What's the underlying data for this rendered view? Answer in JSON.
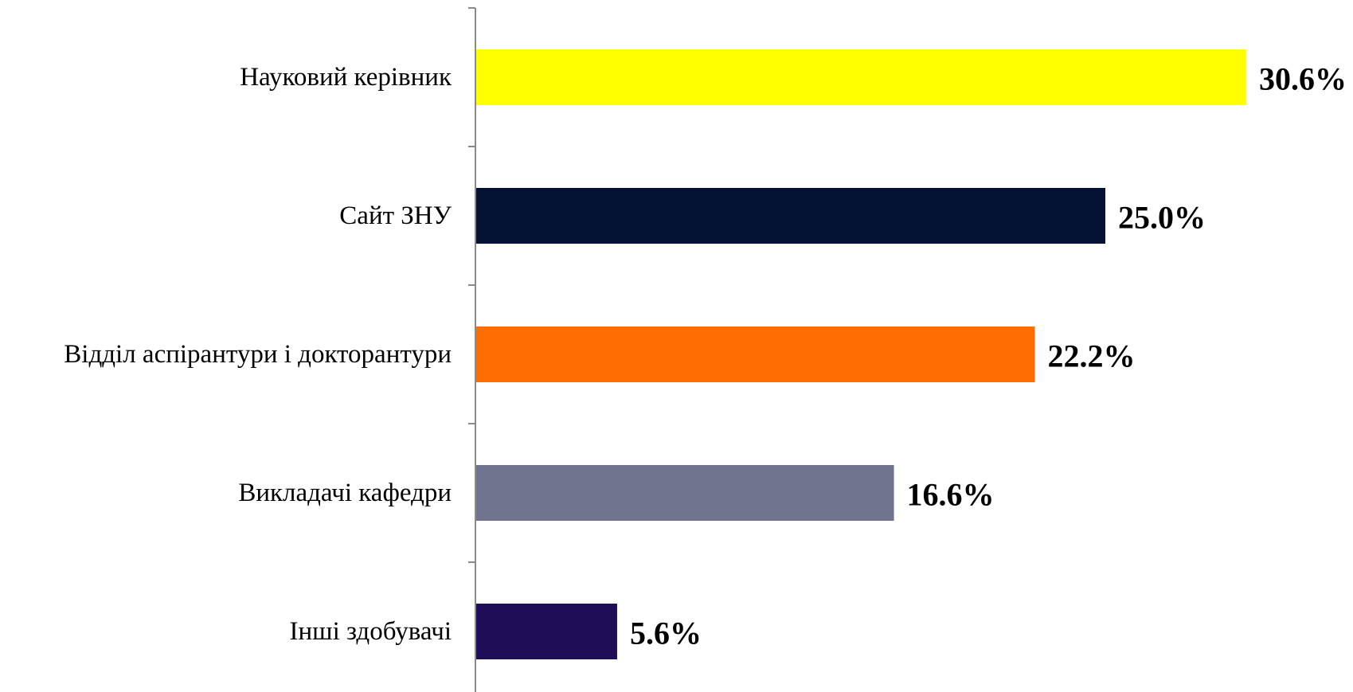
{
  "chart_data": {
    "type": "bar",
    "orientation": "horizontal",
    "categories": [
      "Науковий керівник",
      "Сайт ЗНУ",
      "Відділ аспірантури і докторантури",
      "Викладачі кафедри",
      "Інші здобувачі"
    ],
    "values": [
      30.6,
      25.0,
      22.2,
      16.6,
      5.6
    ],
    "data_labels": [
      "30.6%",
      "25.0%",
      "22.2%",
      "16.6%",
      "5.6%"
    ],
    "colors": [
      "#FFFF00",
      "#061233",
      "#FF6D00",
      "#71748E",
      "#200D58"
    ],
    "value_unit": "%",
    "xlim": [
      0,
      31
    ],
    "title": "",
    "xlabel": "",
    "ylabel": "",
    "grid": false,
    "legend": "none"
  }
}
